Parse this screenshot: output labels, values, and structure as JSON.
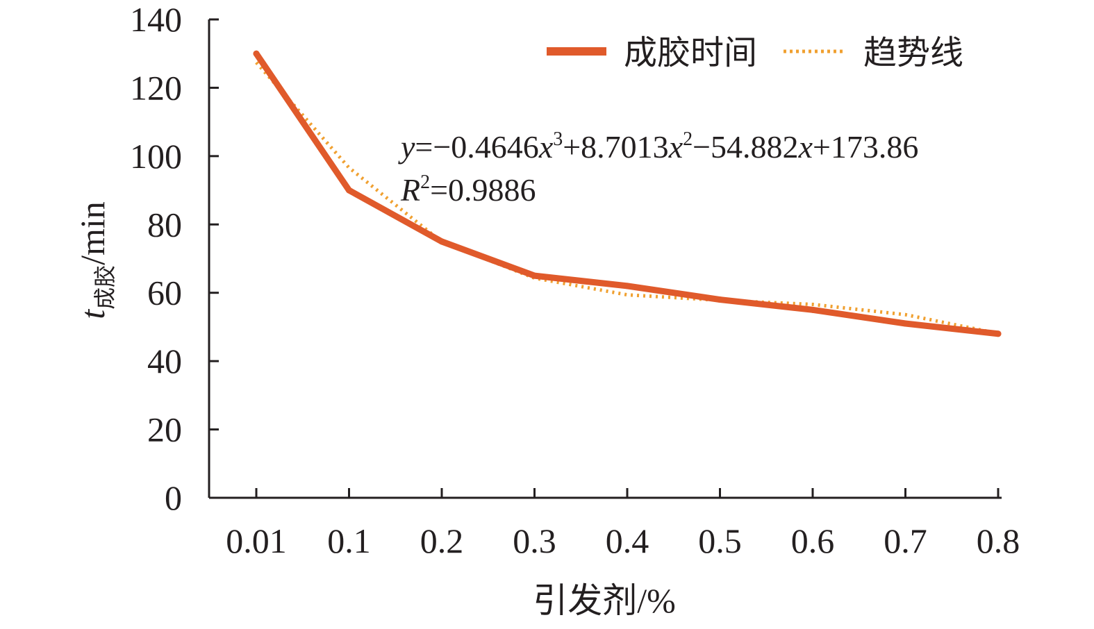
{
  "chart_data": {
    "type": "line",
    "categories": [
      "0.01",
      "0.1",
      "0.2",
      "0.3",
      "0.4",
      "0.5",
      "0.6",
      "0.7",
      "0.8"
    ],
    "series": [
      {
        "name": "成胶时间",
        "values": [
          130,
          90,
          75,
          65,
          62,
          58,
          55,
          51,
          48
        ],
        "color": "#e05a2b",
        "style": "solid"
      },
      {
        "name": "趋势线",
        "values": [
          127.4,
          96.6,
          74.9,
          64.3,
          59.4,
          57.8,
          56.6,
          53.6,
          48.1
        ],
        "color": "#f0a030",
        "style": "dotted"
      }
    ],
    "ylim": [
      0,
      140
    ],
    "yticks": [
      "0",
      "20",
      "40",
      "60",
      "80",
      "100",
      "120",
      "140"
    ],
    "xlabel": "引发剂/%",
    "ylabel": {
      "var": "t",
      "sub": "成胶",
      "unit": "/min"
    },
    "annotation": {
      "equation": {
        "y": "y",
        "eq1": "=−0.4646",
        "x1": "x",
        "p1": "3",
        "eq2": "+8.7013",
        "x2": "x",
        "p2": "2",
        "eq3": "−54.882",
        "x3": "x",
        "eq4": "+173.86"
      },
      "r2": {
        "R": "R",
        "p": "2",
        "val": "=0.9886"
      }
    },
    "legend_position": "top-right",
    "grid": false
  }
}
